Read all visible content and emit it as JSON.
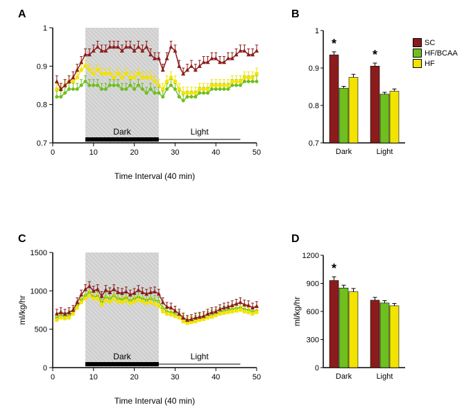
{
  "colors": {
    "sc": "#8c1c1c",
    "hf_bcaa": "#6fbf1f",
    "hf": "#f2e300",
    "axis": "#000000",
    "grid_fill": "#d8d8d8",
    "grid_stroke": "#bfbfbf",
    "bg": "#ffffff"
  },
  "legend": {
    "items": [
      {
        "label": "SC",
        "color_key": "sc"
      },
      {
        "label": "HF/BCAA",
        "color_key": "hf_bcaa"
      },
      {
        "label": "HF",
        "color_key": "hf"
      }
    ]
  },
  "panelA": {
    "label": "A",
    "type": "line",
    "xlabel": "Time Interval (40 min)",
    "ylim": [
      0.7,
      1.0
    ],
    "yticks": [
      0.7,
      0.8,
      0.9,
      1.0
    ],
    "xlim": [
      0,
      50
    ],
    "xticks": [
      0,
      10,
      20,
      30,
      40,
      50
    ],
    "dark_range": [
      8,
      26
    ],
    "dark_label": "Dark",
    "light_label": "Light",
    "tick_fontsize": 11,
    "axis_label_fontsize": 12,
    "error": 0.015,
    "series": {
      "sc": [
        0.86,
        0.84,
        0.85,
        0.86,
        0.87,
        0.89,
        0.91,
        0.93,
        0.93,
        0.94,
        0.95,
        0.94,
        0.94,
        0.95,
        0.95,
        0.95,
        0.94,
        0.95,
        0.95,
        0.94,
        0.95,
        0.94,
        0.95,
        0.93,
        0.92,
        0.92,
        0.89,
        0.92,
        0.95,
        0.94,
        0.9,
        0.88,
        0.89,
        0.9,
        0.89,
        0.9,
        0.91,
        0.91,
        0.92,
        0.92,
        0.91,
        0.91,
        0.92,
        0.92,
        0.93,
        0.94,
        0.94,
        0.93,
        0.93,
        0.94
      ],
      "hf_bcaa": [
        0.82,
        0.82,
        0.83,
        0.84,
        0.84,
        0.84,
        0.85,
        0.86,
        0.85,
        0.85,
        0.85,
        0.84,
        0.84,
        0.85,
        0.85,
        0.85,
        0.84,
        0.84,
        0.85,
        0.84,
        0.85,
        0.84,
        0.83,
        0.84,
        0.83,
        0.83,
        0.82,
        0.84,
        0.85,
        0.84,
        0.82,
        0.81,
        0.82,
        0.82,
        0.82,
        0.83,
        0.83,
        0.83,
        0.84,
        0.84,
        0.84,
        0.84,
        0.84,
        0.85,
        0.85,
        0.85,
        0.86,
        0.86,
        0.86,
        0.86
      ],
      "hf": [
        0.84,
        0.84,
        0.85,
        0.86,
        0.86,
        0.87,
        0.89,
        0.9,
        0.89,
        0.88,
        0.89,
        0.88,
        0.88,
        0.88,
        0.87,
        0.88,
        0.87,
        0.88,
        0.87,
        0.87,
        0.88,
        0.87,
        0.87,
        0.87,
        0.86,
        0.85,
        0.84,
        0.86,
        0.87,
        0.86,
        0.84,
        0.83,
        0.83,
        0.83,
        0.83,
        0.84,
        0.84,
        0.84,
        0.85,
        0.85,
        0.85,
        0.85,
        0.85,
        0.86,
        0.86,
        0.86,
        0.87,
        0.87,
        0.87,
        0.88
      ]
    }
  },
  "panelB": {
    "label": "B",
    "type": "bar",
    "ylim": [
      0.7,
      1.0
    ],
    "yticks": [
      0.7,
      0.8,
      0.9,
      1.0
    ],
    "categories": [
      "Dark",
      "Light"
    ],
    "tick_fontsize": 11,
    "bars": {
      "Dark": {
        "sc": 0.935,
        "hf_bcaa": 0.846,
        "hf": 0.875
      },
      "Light": {
        "sc": 0.905,
        "hf_bcaa": 0.83,
        "hf": 0.838
      }
    },
    "errors": {
      "Dark": {
        "sc": 0.008,
        "hf_bcaa": 0.005,
        "hf": 0.008
      },
      "Light": {
        "sc": 0.008,
        "hf_bcaa": 0.005,
        "hf": 0.006
      }
    },
    "stars": [
      "Dark",
      "Light"
    ]
  },
  "panelC": {
    "label": "C",
    "type": "line",
    "xlabel": "Time Interval (40 min)",
    "ylabel": "ml/kg/hr",
    "ylim": [
      0,
      1500
    ],
    "yticks": [
      0,
      500,
      1000,
      1500
    ],
    "xlim": [
      0,
      50
    ],
    "xticks": [
      0,
      10,
      20,
      30,
      40,
      50
    ],
    "dark_range": [
      8,
      26
    ],
    "dark_label": "Dark",
    "light_label": "Light",
    "tick_fontsize": 11,
    "axis_label_fontsize": 12,
    "error": 60,
    "series": {
      "sc": [
        700,
        720,
        700,
        720,
        750,
        850,
        950,
        1020,
        1060,
        1000,
        1020,
        930,
        1010,
        980,
        1020,
        980,
        970,
        990,
        950,
        970,
        1010,
        980,
        960,
        980,
        990,
        960,
        850,
        790,
        780,
        740,
        700,
        650,
        620,
        630,
        650,
        660,
        670,
        700,
        720,
        730,
        760,
        780,
        790,
        810,
        830,
        850,
        820,
        810,
        780,
        800
      ],
      "hf_bcaa": [
        650,
        680,
        660,
        680,
        720,
        800,
        880,
        940,
        980,
        920,
        930,
        860,
        920,
        900,
        940,
        900,
        890,
        910,
        870,
        900,
        920,
        900,
        880,
        900,
        880,
        860,
        780,
        730,
        720,
        700,
        670,
        620,
        600,
        600,
        620,
        640,
        650,
        670,
        690,
        700,
        720,
        740,
        750,
        760,
        770,
        780,
        760,
        750,
        730,
        740
      ],
      "hf": [
        620,
        650,
        640,
        650,
        700,
        780,
        850,
        900,
        940,
        900,
        900,
        820,
        870,
        860,
        890,
        860,
        850,
        870,
        840,
        860,
        880,
        860,
        840,
        850,
        830,
        800,
        730,
        700,
        690,
        670,
        650,
        600,
        580,
        590,
        600,
        620,
        630,
        650,
        660,
        680,
        700,
        710,
        720,
        730,
        740,
        750,
        730,
        720,
        700,
        720
      ]
    }
  },
  "panelD": {
    "label": "D",
    "type": "bar",
    "ylabel": "ml/kg/hr",
    "ylim": [
      0,
      1200
    ],
    "yticks": [
      0,
      300,
      600,
      900,
      1200
    ],
    "categories": [
      "Dark",
      "Light"
    ],
    "tick_fontsize": 11,
    "bars": {
      "Dark": {
        "sc": 930,
        "hf_bcaa": 850,
        "hf": 810
      },
      "Light": {
        "sc": 720,
        "hf_bcaa": 690,
        "hf": 660
      }
    },
    "errors": {
      "Dark": {
        "sc": 40,
        "hf_bcaa": 30,
        "hf": 35
      },
      "Light": {
        "sc": 30,
        "hf_bcaa": 25,
        "hf": 25
      }
    },
    "stars": [
      "Dark"
    ]
  }
}
